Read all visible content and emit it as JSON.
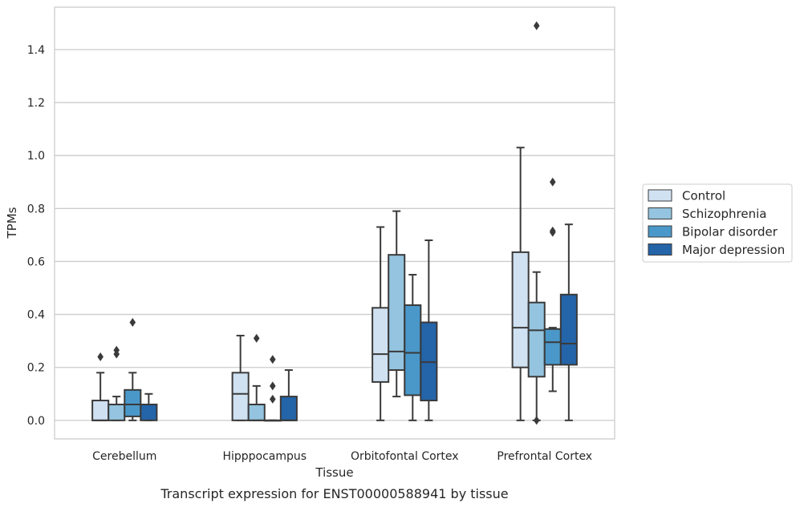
{
  "caption": "Transcript expression for ENST00000588941 by tissue",
  "chart_data": {
    "type": "box",
    "xlabel": "Tissue",
    "ylabel": "TPMs",
    "ylim": [
      -0.07,
      1.56
    ],
    "yticks": [
      0.0,
      0.2,
      0.4,
      0.6,
      0.8,
      1.0,
      1.2,
      1.4
    ],
    "ytick_labels": [
      "0.0",
      "0.2",
      "0.4",
      "0.6",
      "0.8",
      "1.0",
      "1.2",
      "1.4"
    ],
    "grid": "horizontal",
    "legend_position": "right",
    "categories": [
      "Cerebellum",
      "Hipppocampus",
      "Orbitofontal Cortex",
      "Prefrontal Cortex"
    ],
    "series": [
      {
        "name": "Control",
        "color": "#d0e1f2",
        "boxes": [
          {
            "q1": 0.0,
            "median": 0.0,
            "q3": 0.075,
            "whisker_low": 0.0,
            "whisker_high": 0.18,
            "outliers": [
              0.24
            ]
          },
          {
            "q1": 0.0,
            "median": 0.1,
            "q3": 0.18,
            "whisker_low": 0.0,
            "whisker_high": 0.32,
            "outliers": []
          },
          {
            "q1": 0.145,
            "median": 0.25,
            "q3": 0.425,
            "whisker_low": 0.0,
            "whisker_high": 0.73,
            "outliers": []
          },
          {
            "q1": 0.2,
            "median": 0.35,
            "q3": 0.635,
            "whisker_low": 0.0,
            "whisker_high": 1.03,
            "outliers": []
          }
        ]
      },
      {
        "name": "Schizophrenia",
        "color": "#94c4df",
        "boxes": [
          {
            "q1": 0.0,
            "median": 0.06,
            "q3": 0.06,
            "whisker_low": 0.0,
            "whisker_high": 0.09,
            "outliers": [
              0.25,
              0.265
            ]
          },
          {
            "q1": 0.0,
            "median": 0.0,
            "q3": 0.06,
            "whisker_low": 0.0,
            "whisker_high": 0.13,
            "outliers": [
              0.31
            ]
          },
          {
            "q1": 0.19,
            "median": 0.26,
            "q3": 0.625,
            "whisker_low": 0.09,
            "whisker_high": 0.79,
            "outliers": []
          },
          {
            "q1": 0.165,
            "median": 0.34,
            "q3": 0.445,
            "whisker_low": 0.0,
            "whisker_high": 0.56,
            "outliers": [
              0.0,
              1.49
            ]
          }
        ]
      },
      {
        "name": "Bipolar disorder",
        "color": "#4a98c9",
        "boxes": [
          {
            "q1": 0.015,
            "median": 0.06,
            "q3": 0.115,
            "whisker_low": 0.0,
            "whisker_high": 0.18,
            "outliers": [
              0.37
            ]
          },
          {
            "q1": 0.0,
            "median": 0.0,
            "q3": 0.0,
            "whisker_low": 0.0,
            "whisker_high": 0.0,
            "outliers": [
              0.08,
              0.13,
              0.23
            ]
          },
          {
            "q1": 0.095,
            "median": 0.255,
            "q3": 0.435,
            "whisker_low": 0.0,
            "whisker_high": 0.55,
            "outliers": []
          },
          {
            "q1": 0.21,
            "median": 0.295,
            "q3": 0.345,
            "whisker_low": 0.11,
            "whisker_high": 0.35,
            "outliers": [
              0.71,
              0.715,
              0.9
            ]
          }
        ]
      },
      {
        "name": "Major depression",
        "color": "#2464a8",
        "boxes": [
          {
            "q1": 0.0,
            "median": 0.06,
            "q3": 0.06,
            "whisker_low": 0.0,
            "whisker_high": 0.1,
            "outliers": []
          },
          {
            "q1": 0.0,
            "median": 0.0,
            "q3": 0.09,
            "whisker_low": 0.0,
            "whisker_high": 0.19,
            "outliers": []
          },
          {
            "q1": 0.075,
            "median": 0.22,
            "q3": 0.37,
            "whisker_low": 0.0,
            "whisker_high": 0.68,
            "outliers": []
          },
          {
            "q1": 0.21,
            "median": 0.29,
            "q3": 0.475,
            "whisker_low": 0.0,
            "whisker_high": 0.74,
            "outliers": []
          }
        ]
      }
    ]
  }
}
